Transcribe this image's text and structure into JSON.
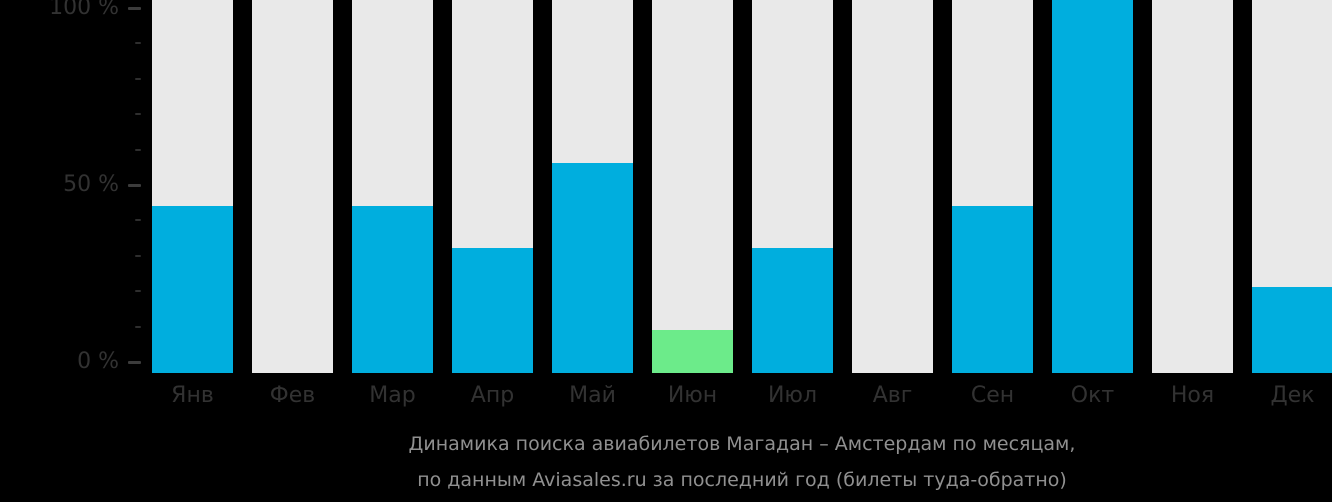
{
  "chart_data": {
    "type": "bar",
    "categories": [
      "Янв",
      "Фев",
      "Мар",
      "Апр",
      "Май",
      "Июн",
      "Июл",
      "Авг",
      "Сен",
      "Окт",
      "Ноя",
      "Дек"
    ],
    "values": [
      44,
      0,
      44,
      32,
      56,
      9,
      32,
      0,
      44,
      100,
      0,
      21
    ],
    "highlight_index": 5,
    "title": "Динамика поиска авиабилетов Магадан – Амстердам по месяцам,",
    "subtitle": "по данным Aviasales.ru за последний год (билеты туда-обратно)",
    "xlabel": "",
    "ylabel": "",
    "ylim": [
      0,
      100
    ],
    "grid": false,
    "legend": "none",
    "yticks": [
      {
        "label": "100 %",
        "value": 100
      },
      {
        "label": "50 %",
        "value": 50
      },
      {
        "label": "0 %",
        "value": 0
      }
    ],
    "colors": {
      "background": "#000000",
      "track": "#e9e9e9",
      "bar": "#00aede",
      "highlight": "#6ceb8a",
      "axis_text": "#323232",
      "tick_major": "#3c3c3c",
      "tick_minor": "#2e2e2e",
      "title_text": "#909090"
    }
  }
}
